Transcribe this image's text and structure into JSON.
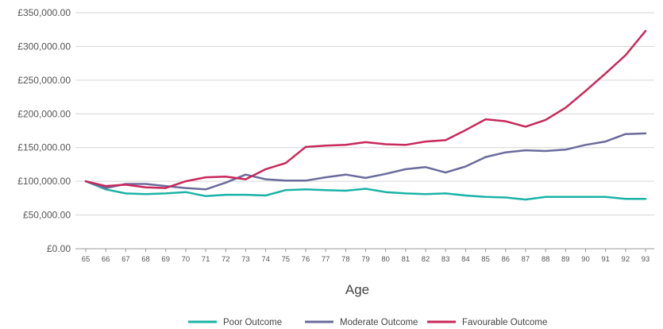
{
  "chart_data": {
    "type": "line",
    "xlabel": "Age",
    "ylabel": "",
    "ylim": [
      0,
      350000
    ],
    "grid": "horizontal",
    "legend_position": "bottom-center",
    "y_ticks": [
      "£0.00",
      "£50,000.00",
      "£100,000.00",
      "£150,000.00",
      "£200,000.00",
      "£250,000.00",
      "£300,000.00",
      "£350,000.00"
    ],
    "x": [
      65,
      66,
      67,
      68,
      69,
      70,
      71,
      72,
      73,
      74,
      75,
      76,
      77,
      78,
      79,
      80,
      81,
      82,
      83,
      84,
      85,
      86,
      87,
      88,
      89,
      90,
      91,
      92,
      93
    ],
    "series": [
      {
        "name": "Poor Outcome",
        "color": "#1ab3a6",
        "values": [
          100000,
          88000,
          82000,
          81000,
          82000,
          84000,
          78000,
          80000,
          80000,
          79000,
          87000,
          88000,
          87000,
          86000,
          89000,
          84000,
          82000,
          81000,
          82000,
          79000,
          77000,
          76000,
          73000,
          77000,
          77000,
          77000,
          77000,
          74000,
          74000
        ]
      },
      {
        "name": "Moderate Outcome",
        "color": "#6b6b9b",
        "values": [
          100000,
          90000,
          96000,
          96000,
          93000,
          90000,
          88000,
          98000,
          110000,
          103000,
          101000,
          101000,
          106000,
          110000,
          105000,
          111000,
          118000,
          121000,
          113000,
          122000,
          136000,
          143000,
          146000,
          145000,
          147000,
          154000,
          159000,
          170000,
          171000
        ]
      },
      {
        "name": "Favourable Outcome",
        "color": "#c8285a",
        "values": [
          100000,
          93000,
          95000,
          91000,
          90000,
          100000,
          106000,
          107000,
          103000,
          118000,
          127000,
          151000,
          153000,
          154000,
          158000,
          155000,
          154000,
          159000,
          161000,
          176000,
          192000,
          189000,
          181000,
          191000,
          209000,
          234000,
          260000,
          287000,
          323000
        ]
      }
    ]
  }
}
